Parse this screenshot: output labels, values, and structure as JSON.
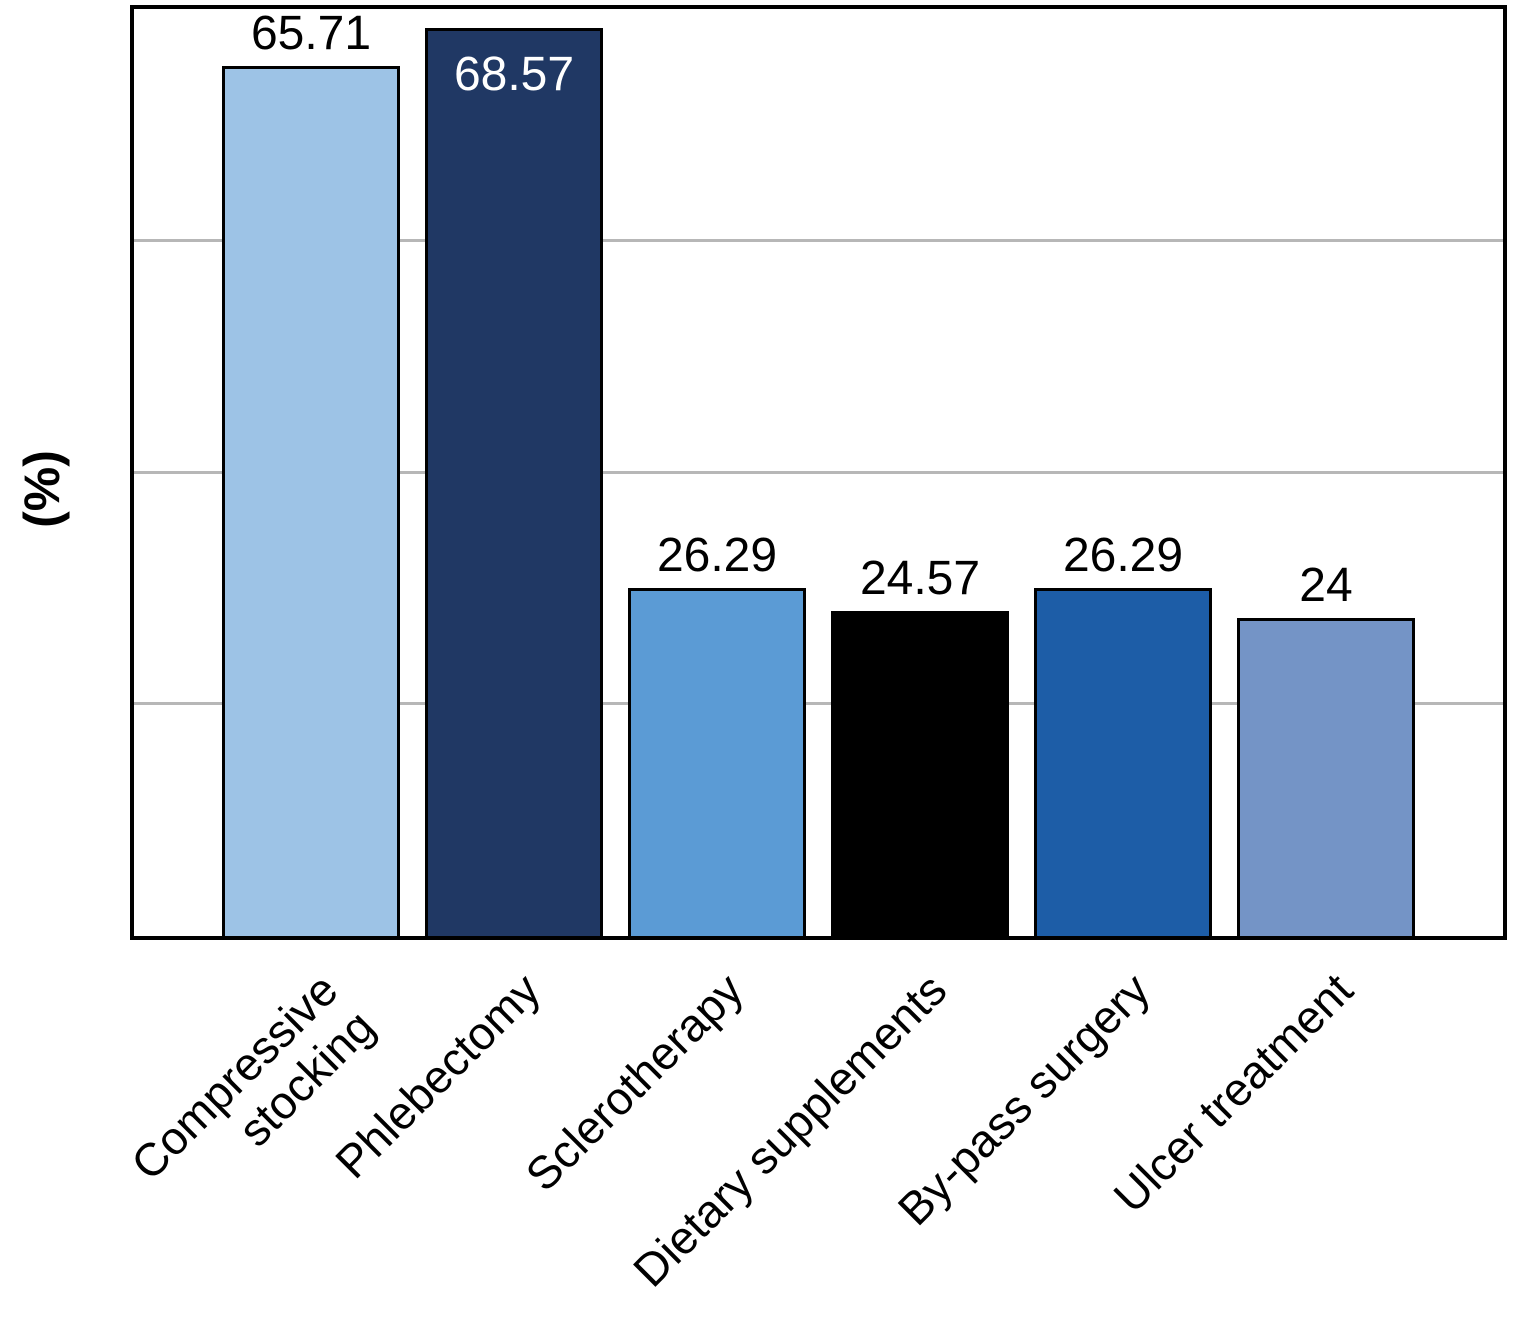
{
  "chart_data": {
    "type": "bar",
    "title": "",
    "xlabel": "",
    "ylabel": "(%)",
    "ylim": [
      0,
      70
    ],
    "grid": true,
    "gridlines": [
      17.5,
      35,
      52.5
    ],
    "legend": "none",
    "categories": [
      "Compressive\nstocking",
      "Phlebectomy",
      "Sclerotherapy",
      "Dietary supplements",
      "By-pass surgery",
      "Ulcer treatment"
    ],
    "values": [
      65.71,
      68.57,
      26.29,
      24.57,
      26.29,
      24
    ],
    "value_labels": [
      "65.71",
      "68.57",
      "26.29",
      "24.57",
      "26.29",
      "24"
    ],
    "bar_colors": [
      "#9dc3e6",
      "#203864",
      "#5b9bd5",
      "#000000",
      "#1d5da7",
      "#7494c6"
    ],
    "value_label_colors": [
      "#000000",
      "#ffffff",
      "#000000",
      "#000000",
      "#000000",
      "#000000"
    ],
    "value_label_inside": [
      false,
      true,
      false,
      false,
      false,
      false
    ]
  }
}
